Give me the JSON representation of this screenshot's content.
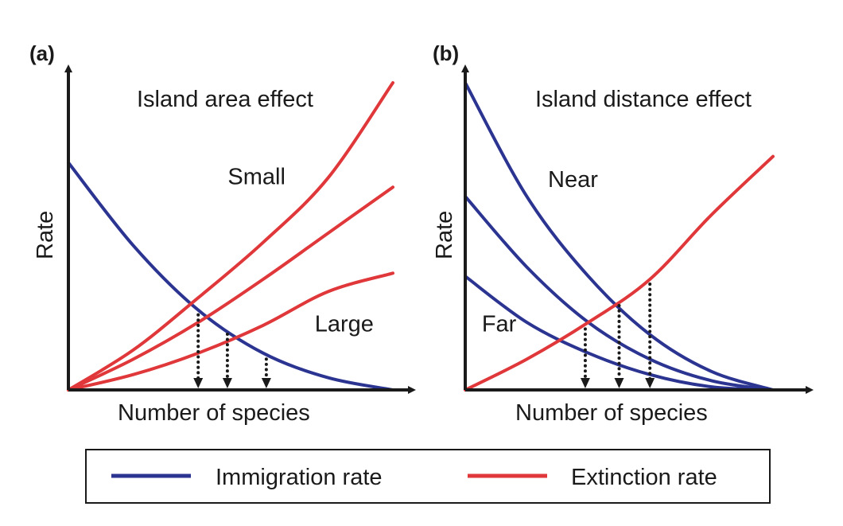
{
  "colors": {
    "immigration": "#2b3591",
    "extinction": "#e0383a",
    "axis": "#1a1a1a"
  },
  "legend": {
    "immigration_label": "Immigration rate",
    "extinction_label": "Extinction rate"
  },
  "chart_data": [
    {
      "type": "line",
      "panel_label": "(a)",
      "title": "Island area effect",
      "xlabel": "Number of species",
      "ylabel": "Rate",
      "ticks": "none",
      "xlim": [
        0,
        100
      ],
      "ylim": [
        0,
        100
      ],
      "series": [
        {
          "name": "Immigration rate",
          "kind": "immigration",
          "points": [
            [
              0,
              74
            ],
            [
              20,
              47
            ],
            [
              40,
              26
            ],
            [
              60,
              12
            ],
            [
              80,
              4
            ],
            [
              100,
              0
            ]
          ]
        },
        {
          "name": "Extinction rate",
          "kind": "extinction",
          "points": [
            [
              0,
              0
            ],
            [
              20,
              13
            ],
            [
              40,
              30
            ],
            [
              60,
              48
            ],
            [
              80,
              69
            ],
            [
              100,
              100
            ]
          ]
        },
        {
          "name": "Extinction rate",
          "kind": "extinction",
          "points": [
            [
              0,
              0
            ],
            [
              20,
              10
            ],
            [
              40,
              22
            ],
            [
              60,
              36
            ],
            [
              80,
              51
            ],
            [
              100,
              66
            ]
          ]
        },
        {
          "name": "Extinction rate",
          "kind": "extinction",
          "points": [
            [
              0,
              0
            ],
            [
              20,
              5
            ],
            [
              40,
              12
            ],
            [
              60,
              21
            ],
            [
              80,
              32
            ],
            [
              100,
              38
            ]
          ]
        }
      ],
      "equilibria_x": [
        40,
        49,
        61
      ],
      "annotations": [
        {
          "text": "Small",
          "x": 58,
          "y": 67
        },
        {
          "text": "Large",
          "x": 85,
          "y": 19
        }
      ]
    },
    {
      "type": "line",
      "panel_label": "(b)",
      "title": "Island distance effect",
      "xlabel": "Number of species",
      "ylabel": "Rate",
      "ticks": "none",
      "xlim": [
        0,
        100
      ],
      "ylim": [
        0,
        100
      ],
      "series": [
        {
          "name": "Immigration rate",
          "kind": "immigration",
          "points": [
            [
              0,
              100
            ],
            [
              20,
              63
            ],
            [
              40,
              37
            ],
            [
              60,
              18
            ],
            [
              80,
              6
            ],
            [
              100,
              0
            ]
          ]
        },
        {
          "name": "Immigration rate",
          "kind": "immigration",
          "points": [
            [
              0,
              63
            ],
            [
              20,
              40
            ],
            [
              40,
              22
            ],
            [
              60,
              10
            ],
            [
              80,
              3
            ],
            [
              100,
              0
            ]
          ]
        },
        {
          "name": "Immigration rate",
          "kind": "immigration",
          "points": [
            [
              0,
              37
            ],
            [
              20,
              22
            ],
            [
              40,
              12
            ],
            [
              60,
              5
            ],
            [
              80,
              1
            ],
            [
              100,
              0
            ]
          ]
        },
        {
          "name": "Extinction rate",
          "kind": "extinction",
          "points": [
            [
              0,
              0
            ],
            [
              20,
              10
            ],
            [
              40,
              22
            ],
            [
              60,
              36
            ],
            [
              80,
              57
            ],
            [
              100,
              76
            ]
          ]
        }
      ],
      "equilibria_x": [
        39,
        50,
        60
      ],
      "annotations": [
        {
          "text": "Near",
          "x": 35,
          "y": 66
        },
        {
          "text": "Far",
          "x": 11,
          "y": 19
        }
      ]
    }
  ]
}
